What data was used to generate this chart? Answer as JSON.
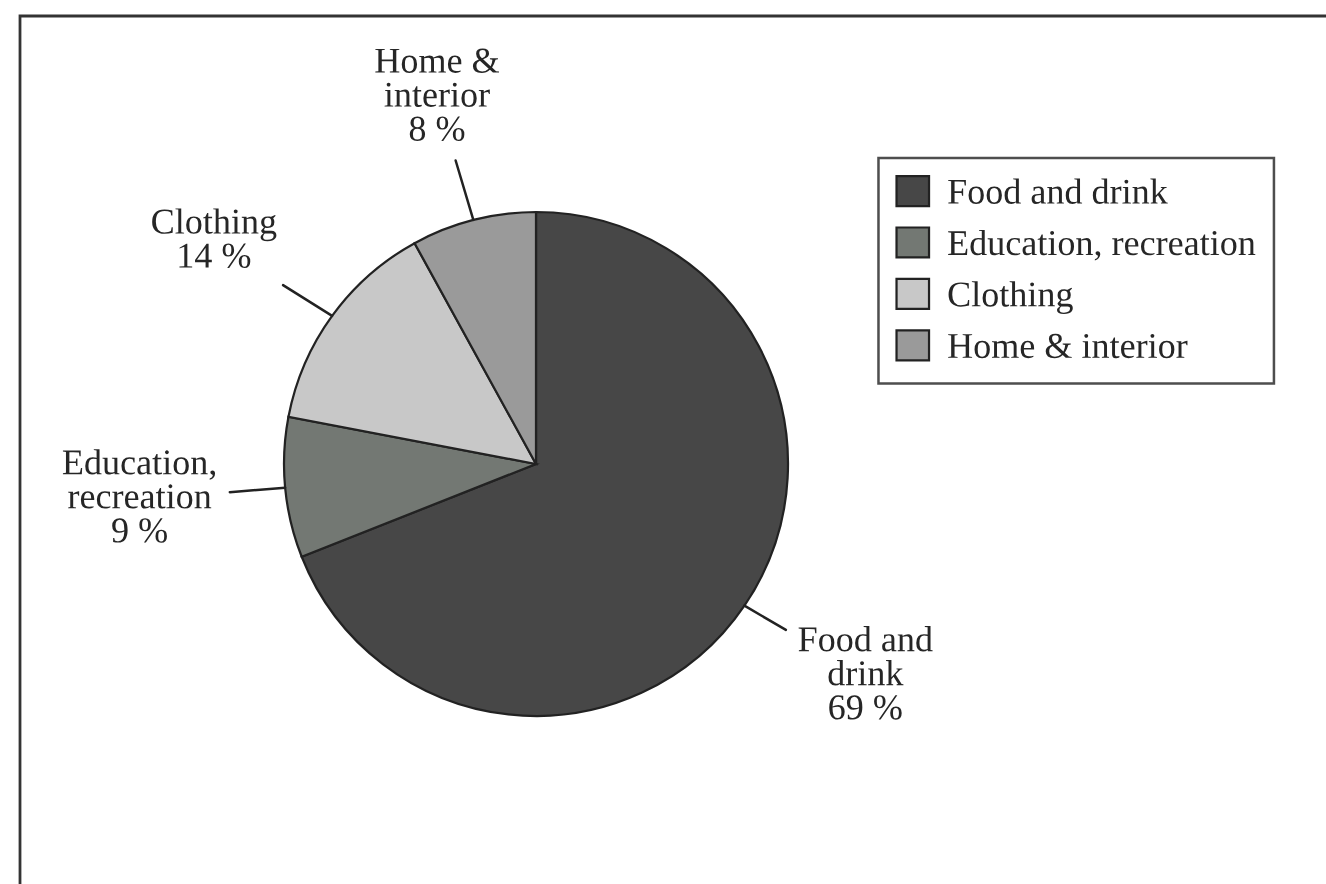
{
  "chart_data": {
    "type": "pie",
    "categories": [
      "Food and drink",
      "Education, recreation",
      "Clothing",
      "Home & interior"
    ],
    "values": [
      69,
      9,
      14,
      8
    ],
    "colors": [
      "#474747",
      "#737873",
      "#c8c8c8",
      "#9a9a9a"
    ],
    "value_labels": [
      "Food and\ndrink\n69 %",
      "Education,\nrecreation\n9 %",
      "Clothing\n14 %",
      "Home &\ninterior\n8 %"
    ],
    "legend": "top right"
  }
}
